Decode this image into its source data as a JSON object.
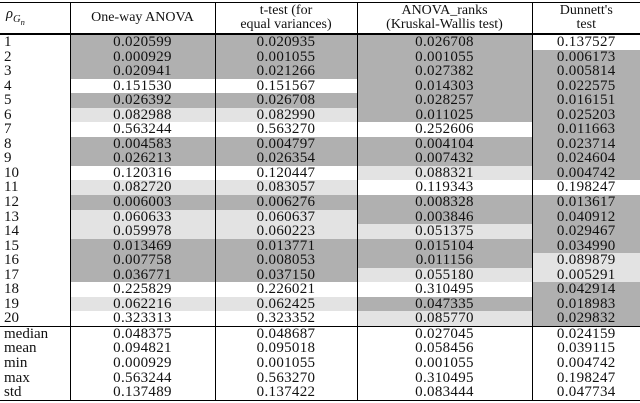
{
  "table": {
    "header": {
      "rho": {
        "symbol": "ρ",
        "sub": "G",
        "subsub": "n"
      },
      "columns": [
        {
          "lines": [
            "One-way ANOVA",
            ""
          ]
        },
        {
          "lines": [
            "t-test (for",
            "equal variances)"
          ]
        },
        {
          "lines": [
            "ANOVA_ranks",
            "(Kruskal-Wallis test)"
          ]
        },
        {
          "lines": [
            "Dunnett's",
            "test"
          ]
        }
      ]
    },
    "shade_colors": {
      "d": "#b0b0b0",
      "l": "#e3e3e3",
      "w": "#ffffff"
    },
    "shade_legend": {
      "d": "dark-gray",
      "l": "light-gray",
      "w": "white"
    },
    "rows": [
      {
        "label": "1",
        "cells": [
          [
            "0.020599",
            "d"
          ],
          [
            "0.020935",
            "d"
          ],
          [
            "0.026708",
            "d"
          ],
          [
            "0.137527",
            "w"
          ]
        ]
      },
      {
        "label": "2",
        "cells": [
          [
            "0.000929",
            "d"
          ],
          [
            "0.001055",
            "d"
          ],
          [
            "0.001055",
            "d"
          ],
          [
            "0.006173",
            "d"
          ]
        ]
      },
      {
        "label": "3",
        "cells": [
          [
            "0.020941",
            "d"
          ],
          [
            "0.021266",
            "d"
          ],
          [
            "0.027382",
            "d"
          ],
          [
            "0.005814",
            "d"
          ]
        ]
      },
      {
        "label": "4",
        "cells": [
          [
            "0.151530",
            "w"
          ],
          [
            "0.151567",
            "w"
          ],
          [
            "0.014303",
            "d"
          ],
          [
            "0.022575",
            "d"
          ]
        ]
      },
      {
        "label": "5",
        "cells": [
          [
            "0.026392",
            "d"
          ],
          [
            "0.026708",
            "d"
          ],
          [
            "0.028257",
            "d"
          ],
          [
            "0.016151",
            "d"
          ]
        ]
      },
      {
        "label": "6",
        "cells": [
          [
            "0.082988",
            "l"
          ],
          [
            "0.082990",
            "l"
          ],
          [
            "0.011025",
            "d"
          ],
          [
            "0.025203",
            "d"
          ]
        ]
      },
      {
        "label": "7",
        "cells": [
          [
            "0.563244",
            "w"
          ],
          [
            "0.563270",
            "w"
          ],
          [
            "0.252606",
            "w"
          ],
          [
            "0.011663",
            "d"
          ]
        ]
      },
      {
        "label": "8",
        "cells": [
          [
            "0.004583",
            "d"
          ],
          [
            "0.004797",
            "d"
          ],
          [
            "0.004104",
            "d"
          ],
          [
            "0.023714",
            "d"
          ]
        ]
      },
      {
        "label": "9",
        "cells": [
          [
            "0.026213",
            "d"
          ],
          [
            "0.026354",
            "d"
          ],
          [
            "0.007432",
            "d"
          ],
          [
            "0.024604",
            "d"
          ]
        ]
      },
      {
        "label": "10",
        "cells": [
          [
            "0.120316",
            "w"
          ],
          [
            "0.120447",
            "w"
          ],
          [
            "0.088321",
            "l"
          ],
          [
            "0.004742",
            "d"
          ]
        ]
      },
      {
        "label": "11",
        "cells": [
          [
            "0.082720",
            "l"
          ],
          [
            "0.083057",
            "l"
          ],
          [
            "0.119343",
            "w"
          ],
          [
            "0.198247",
            "w"
          ]
        ]
      },
      {
        "label": "12",
        "cells": [
          [
            "0.006003",
            "d"
          ],
          [
            "0.006276",
            "d"
          ],
          [
            "0.008328",
            "d"
          ],
          [
            "0.013617",
            "d"
          ]
        ]
      },
      {
        "label": "13",
        "cells": [
          [
            "0.060633",
            "l"
          ],
          [
            "0.060637",
            "l"
          ],
          [
            "0.003846",
            "d"
          ],
          [
            "0.040912",
            "d"
          ]
        ]
      },
      {
        "label": "14",
        "cells": [
          [
            "0.059978",
            "l"
          ],
          [
            "0.060223",
            "l"
          ],
          [
            "0.051375",
            "l"
          ],
          [
            "0.029467",
            "d"
          ]
        ]
      },
      {
        "label": "15",
        "cells": [
          [
            "0.013469",
            "d"
          ],
          [
            "0.013771",
            "d"
          ],
          [
            "0.015104",
            "d"
          ],
          [
            "0.034990",
            "d"
          ]
        ]
      },
      {
        "label": "16",
        "cells": [
          [
            "0.007758",
            "d"
          ],
          [
            "0.008053",
            "d"
          ],
          [
            "0.011156",
            "d"
          ],
          [
            "0.089879",
            "l"
          ]
        ]
      },
      {
        "label": "17",
        "cells": [
          [
            "0.036771",
            "d"
          ],
          [
            "0.037150",
            "d"
          ],
          [
            "0.055180",
            "l"
          ],
          [
            "0.005291",
            "l"
          ]
        ]
      },
      {
        "label": "18",
        "cells": [
          [
            "0.225829",
            "w"
          ],
          [
            "0.226021",
            "w"
          ],
          [
            "0.310495",
            "w"
          ],
          [
            "0.042914",
            "d"
          ]
        ]
      },
      {
        "label": "19",
        "cells": [
          [
            "0.062216",
            "l"
          ],
          [
            "0.062425",
            "l"
          ],
          [
            "0.047335",
            "d"
          ],
          [
            "0.018983",
            "d"
          ]
        ]
      },
      {
        "label": "20",
        "cells": [
          [
            "0.323313",
            "w"
          ],
          [
            "0.323352",
            "w"
          ],
          [
            "0.085770",
            "l"
          ],
          [
            "0.029832",
            "d"
          ]
        ]
      }
    ],
    "stats": [
      {
        "label": "median",
        "cells": [
          [
            "0.048375",
            "w"
          ],
          [
            "0.048687",
            "w"
          ],
          [
            "0.027045",
            "w"
          ],
          [
            "0.024159",
            "w"
          ]
        ]
      },
      {
        "label": "mean",
        "cells": [
          [
            "0.094821",
            "w"
          ],
          [
            "0.095018",
            "w"
          ],
          [
            "0.058456",
            "w"
          ],
          [
            "0.039115",
            "w"
          ]
        ]
      },
      {
        "label": "min",
        "cells": [
          [
            "0.000929",
            "w"
          ],
          [
            "0.001055",
            "w"
          ],
          [
            "0.001055",
            "w"
          ],
          [
            "0.004742",
            "w"
          ]
        ]
      },
      {
        "label": "max",
        "cells": [
          [
            "0.563244",
            "w"
          ],
          [
            "0.563270",
            "w"
          ],
          [
            "0.310495",
            "w"
          ],
          [
            "0.198247",
            "w"
          ]
        ]
      },
      {
        "label": "std",
        "cells": [
          [
            "0.137489",
            "w"
          ],
          [
            "0.137422",
            "w"
          ],
          [
            "0.083444",
            "w"
          ],
          [
            "0.047734",
            "w"
          ]
        ]
      }
    ]
  }
}
